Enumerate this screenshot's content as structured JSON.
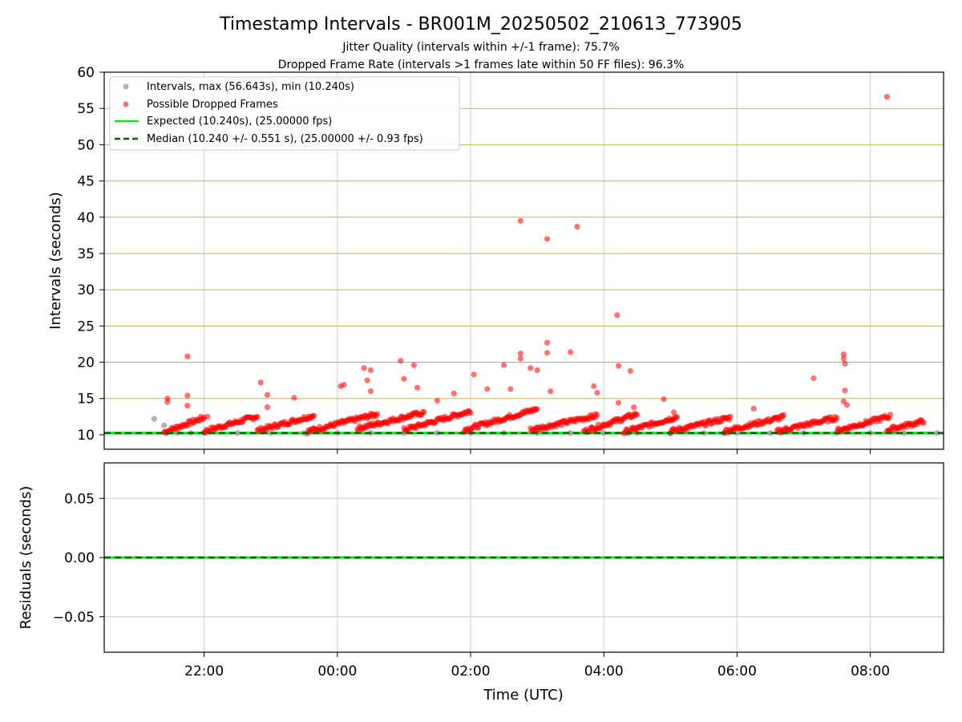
{
  "title": "Timestamp Intervals - BR001M_20250502_210613_773905",
  "subtitle_1": "Jitter Quality (intervals within +/-1 frame): 75.7%",
  "subtitle_2": "Dropped Frame Rate (intervals >1 frames late within 50 FF files): 96.3%",
  "colors": {
    "intervals": "#a0a0a0",
    "dropped": "#ff0000",
    "expected": "#00ee00",
    "median": "#006400",
    "hgrid_top": "#c8b060",
    "grid": "#cccccc"
  },
  "chart_data": [
    {
      "type": "scatter",
      "ylabel": "Intervals (seconds)",
      "ylim": [
        8,
        60
      ],
      "xlim": [
        -3.5,
        9.1
      ],
      "yticks": [
        10,
        15,
        20,
        25,
        30,
        35,
        40,
        45,
        50,
        55,
        60
      ],
      "ytick_labels": [
        "10",
        "15",
        "20",
        "25",
        "30",
        "35",
        "40",
        "45",
        "50",
        "55",
        "60"
      ],
      "grid": "on",
      "legend_position": "top-left",
      "legend": [
        "Intervals, max (56.643s), min (10.240s)",
        "Possible Dropped Frames",
        "Expected (10.240s), (25.00000 fps)",
        "Median (10.240 +/- 0.551 s), (25.00000 +/- 0.93 fps)"
      ],
      "expected_value": 10.24,
      "median_value": 10.24,
      "series_intervals": {
        "x": [
          -2.75,
          -2.6,
          -2.4,
          -2.2,
          -2.0,
          -1.5,
          -1.0,
          -0.5,
          0.0,
          0.5,
          1.0,
          1.5,
          2.0,
          2.5,
          3.0,
          3.5,
          4.0,
          4.5,
          5.0,
          5.5,
          6.0,
          6.5,
          7.0,
          7.5,
          8.0,
          8.5,
          9.0
        ],
        "y": [
          12.2,
          11.3,
          10.24,
          10.24,
          10.24,
          10.24,
          10.24,
          10.24,
          10.24,
          10.24,
          10.24,
          10.24,
          10.24,
          10.24,
          10.24,
          10.24,
          10.24,
          10.24,
          10.24,
          10.24,
          10.24,
          10.24,
          10.24,
          10.24,
          10.24,
          10.24,
          10.24
        ]
      },
      "series_dropped_isolated": {
        "x": [
          -2.55,
          -2.55,
          -2.25,
          -2.25,
          -2.25,
          -1.95,
          -1.15,
          -1.05,
          -1.05,
          -0.65,
          0.05,
          0.1,
          0.4,
          0.45,
          0.5,
          0.5,
          0.95,
          1.0,
          1.15,
          1.2,
          1.5,
          1.75,
          2.05,
          2.25,
          2.5,
          2.6,
          2.75,
          2.75,
          2.75,
          2.9,
          3.0,
          3.15,
          3.15,
          3.15,
          3.2,
          3.5,
          3.6,
          3.85,
          3.9,
          4.2,
          4.22,
          4.22,
          4.4,
          4.45,
          4.9,
          5.05,
          6.25,
          7.15,
          7.6,
          7.6,
          7.62,
          7.62,
          7.6,
          7.65,
          8.25
        ],
        "y": [
          15.0,
          14.5,
          20.8,
          15.4,
          14.0,
          12.5,
          17.2,
          15.5,
          13.8,
          15.1,
          16.7,
          16.9,
          19.2,
          17.5,
          18.9,
          16.0,
          20.2,
          17.7,
          19.6,
          16.5,
          14.7,
          15.7,
          18.3,
          16.3,
          19.6,
          16.3,
          39.5,
          21.2,
          20.5,
          19.2,
          18.9,
          37.0,
          22.7,
          21.3,
          16.0,
          21.4,
          38.7,
          16.7,
          15.8,
          26.5,
          19.5,
          14.4,
          18.8,
          13.8,
          14.9,
          13.1,
          13.6,
          17.8,
          21.1,
          20.5,
          19.8,
          16.1,
          14.6,
          14.1,
          56.6
        ]
      },
      "series_dropped_ramps": [
        {
          "x_start": -2.6,
          "x_end": -2.0,
          "y_start": 10.3,
          "y_end": 12.3
        },
        {
          "x_start": -2.0,
          "x_end": -1.2,
          "y_start": 10.4,
          "y_end": 12.5
        },
        {
          "x_start": -1.2,
          "x_end": -0.35,
          "y_start": 10.5,
          "y_end": 12.6
        },
        {
          "x_start": -0.45,
          "x_end": 0.6,
          "y_start": 10.4,
          "y_end": 12.8
        },
        {
          "x_start": 0.3,
          "x_end": 1.3,
          "y_start": 10.8,
          "y_end": 13.0
        },
        {
          "x_start": 1.0,
          "x_end": 2.0,
          "y_start": 10.6,
          "y_end": 13.2
        },
        {
          "x_start": 1.9,
          "x_end": 3.0,
          "y_start": 10.6,
          "y_end": 13.5
        },
        {
          "x_start": 2.9,
          "x_end": 3.9,
          "y_start": 10.6,
          "y_end": 12.6
        },
        {
          "x_start": 3.7,
          "x_end": 4.5,
          "y_start": 10.4,
          "y_end": 12.8
        },
        {
          "x_start": 4.3,
          "x_end": 5.1,
          "y_start": 10.3,
          "y_end": 12.4
        },
        {
          "x_start": 5.0,
          "x_end": 5.9,
          "y_start": 10.4,
          "y_end": 12.3
        },
        {
          "x_start": 5.8,
          "x_end": 6.7,
          "y_start": 10.4,
          "y_end": 12.4
        },
        {
          "x_start": 6.6,
          "x_end": 7.5,
          "y_start": 10.4,
          "y_end": 12.3
        },
        {
          "x_start": 7.5,
          "x_end": 8.3,
          "y_start": 10.5,
          "y_end": 12.5
        },
        {
          "x_start": 8.25,
          "x_end": 8.8,
          "y_start": 10.6,
          "y_end": 11.8
        }
      ]
    },
    {
      "type": "line",
      "ylabel": "Residuals (seconds)",
      "xlabel": "Time (UTC)",
      "ylim": [
        -0.08,
        0.08
      ],
      "xlim": [
        -3.5,
        9.1
      ],
      "yticks": [
        -0.05,
        0.0,
        0.05
      ],
      "ytick_labels": [
        "−0.05",
        "0.00",
        "0.05"
      ],
      "xticks": [
        -2,
        0,
        2,
        4,
        6,
        8
      ],
      "xtick_labels": [
        "22:00",
        "00:00",
        "02:00",
        "04:00",
        "06:00",
        "08:00"
      ],
      "grid": "on",
      "residual_value": 0.0
    }
  ]
}
